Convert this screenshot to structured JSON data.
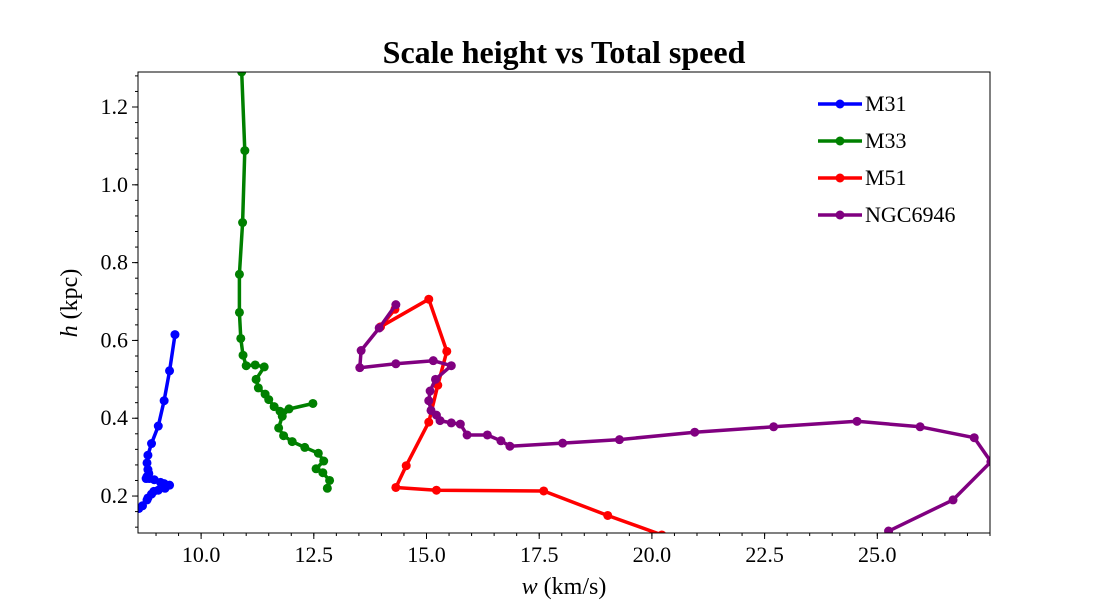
{
  "chart_data": {
    "type": "line",
    "title": "Scale height vs Total speed",
    "xlabel_italic": "w",
    "xlabel_rest": " (km/s)",
    "ylabel_italic": "h",
    "ylabel_rest": " (kpc)",
    "xlim": [
      8.6,
      27.5
    ],
    "ylim": [
      0.105,
      1.29
    ],
    "xticks": [
      10.0,
      12.5,
      15.0,
      17.5,
      20.0,
      22.5,
      25.0
    ],
    "xtick_labels": [
      "10.0",
      "12.5",
      "15.0",
      "17.5",
      "20.0",
      "22.5",
      "25.0"
    ],
    "yticks": [
      0.2,
      0.4,
      0.6,
      0.8,
      1.0,
      1.2
    ],
    "ytick_labels": [
      "0.2",
      "0.4",
      "0.6",
      "0.8",
      "1.0",
      "1.2"
    ],
    "legend_position": "top-right",
    "grid": false,
    "series": [
      {
        "name": "M31",
        "color": "#0000ff",
        "x": [
          9.42,
          9.3,
          9.18,
          9.05,
          8.9,
          8.82,
          8.8,
          8.82,
          8.84,
          8.8,
          8.78,
          8.85,
          8.96,
          9.1,
          9.18,
          9.3,
          9.2,
          9.05,
          8.95,
          8.9,
          8.82,
          8.8,
          8.7,
          8.62
        ],
        "y": [
          0.615,
          0.522,
          0.445,
          0.38,
          0.335,
          0.305,
          0.285,
          0.268,
          0.258,
          0.25,
          0.245,
          0.245,
          0.242,
          0.235,
          0.232,
          0.228,
          0.22,
          0.215,
          0.212,
          0.205,
          0.195,
          0.19,
          0.175,
          0.168
        ]
      },
      {
        "name": "M33",
        "color": "#008000",
        "x": [
          10.9,
          10.97,
          10.92,
          10.85,
          10.85,
          10.88,
          10.93,
          11.0,
          11.2,
          11.4,
          11.22,
          11.27,
          11.42,
          11.5,
          11.62,
          11.75,
          12.48,
          11.95,
          11.8,
          11.72,
          11.83,
          12.02,
          12.3,
          12.6,
          12.72,
          12.55,
          12.7,
          12.85,
          12.8
        ],
        "y": [
          1.29,
          1.088,
          0.903,
          0.77,
          0.672,
          0.605,
          0.562,
          0.535,
          0.537,
          0.532,
          0.5,
          0.478,
          0.462,
          0.448,
          0.43,
          0.418,
          0.438,
          0.424,
          0.405,
          0.375,
          0.355,
          0.34,
          0.325,
          0.31,
          0.29,
          0.27,
          0.26,
          0.24,
          0.22
        ]
      },
      {
        "name": "M51",
        "color": "#ff0000",
        "x": [
          20.5,
          20.22,
          19.02,
          17.6,
          15.22,
          14.32,
          14.55,
          15.05,
          15.25,
          15.45,
          15.05,
          13.98,
          14.3
        ],
        "y": [
          0.08,
          0.1,
          0.15,
          0.213,
          0.215,
          0.222,
          0.278,
          0.39,
          0.485,
          0.572,
          0.706,
          0.635,
          0.68
        ]
      },
      {
        "name": "NGC6946",
        "color": "#800080",
        "x": [
          25.25,
          26.68,
          27.52,
          27.15,
          25.95,
          24.55,
          22.7,
          20.95,
          19.28,
          18.02,
          16.85,
          16.65,
          16.35,
          15.9,
          15.75,
          15.55,
          15.3,
          15.22,
          15.1,
          15.05,
          15.08,
          15.2,
          15.55,
          15.15,
          14.32,
          13.52,
          13.55,
          13.95,
          14.32
        ],
        "y": [
          0.11,
          0.19,
          0.288,
          0.35,
          0.378,
          0.392,
          0.378,
          0.364,
          0.345,
          0.336,
          0.328,
          0.342,
          0.357,
          0.357,
          0.385,
          0.388,
          0.394,
          0.408,
          0.42,
          0.445,
          0.47,
          0.5,
          0.535,
          0.548,
          0.54,
          0.53,
          0.574,
          0.632,
          0.692
        ]
      }
    ]
  }
}
